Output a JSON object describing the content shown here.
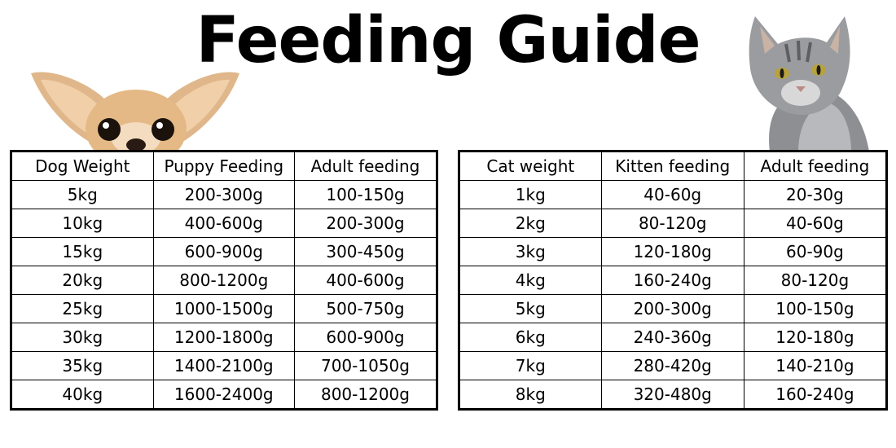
{
  "title": "Feeding Guide",
  "images": {
    "dog": "chihuahua-peeking",
    "cat": "grey-tabby-cat"
  },
  "dog_table": {
    "headers": [
      "Dog Weight",
      "Puppy Feeding",
      "Adult feeding"
    ],
    "rows": [
      [
        "5kg",
        "200-300g",
        "100-150g"
      ],
      [
        "10kg",
        "400-600g",
        "200-300g"
      ],
      [
        "15kg",
        "600-900g",
        "300-450g"
      ],
      [
        "20kg",
        "800-1200g",
        "400-600g"
      ],
      [
        "25kg",
        "1000-1500g",
        "500-750g"
      ],
      [
        "30kg",
        "1200-1800g",
        "600-900g"
      ],
      [
        "35kg",
        "1400-2100g",
        "700-1050g"
      ],
      [
        "40kg",
        "1600-2400g",
        "800-1200g"
      ]
    ]
  },
  "cat_table": {
    "headers": [
      "Cat weight",
      "Kitten feeding",
      "Adult feeding"
    ],
    "rows": [
      [
        "1kg",
        "40-60g",
        "20-30g"
      ],
      [
        "2kg",
        "80-120g",
        "40-60g"
      ],
      [
        "3kg",
        "120-180g",
        "60-90g"
      ],
      [
        "4kg",
        "160-240g",
        "80-120g"
      ],
      [
        "5kg",
        "200-300g",
        "100-150g"
      ],
      [
        "6kg",
        "240-360g",
        "120-180g"
      ],
      [
        "7kg",
        "280-420g",
        "140-210g"
      ],
      [
        "8kg",
        "320-480g",
        "160-240g"
      ]
    ]
  }
}
